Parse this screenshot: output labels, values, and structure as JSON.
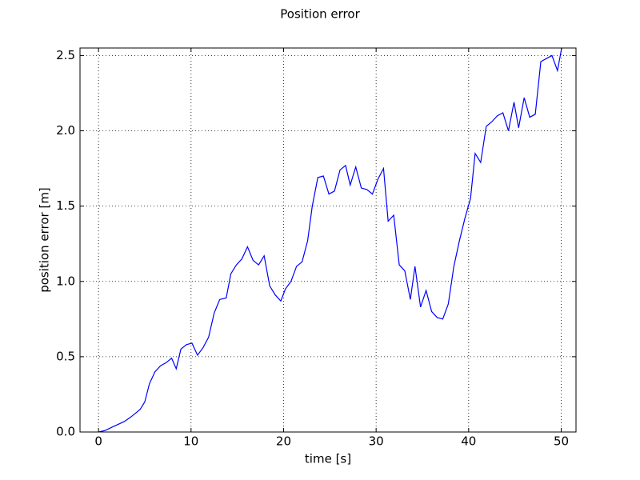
{
  "chart_data": {
    "type": "line",
    "title": "Position error",
    "x_label": "time [s]",
    "y_label": "position error [m]",
    "x": [
      0,
      0.7,
      1.4,
      2.1,
      2.8,
      3.5,
      4.1,
      4.5,
      5.0,
      5.5,
      6.1,
      6.7,
      7.3,
      7.9,
      8.4,
      8.9,
      9.5,
      10.1,
      10.7,
      11.3,
      11.9,
      12.5,
      13.1,
      13.8,
      14.3,
      14.9,
      15.5,
      16.1,
      16.7,
      17.3,
      17.9,
      18.5,
      19.1,
      19.7,
      20.2,
      20.8,
      21.4,
      22.0,
      22.6,
      23.1,
      23.7,
      24.3,
      24.9,
      25.5,
      26.1,
      26.7,
      27.2,
      27.8,
      28.4,
      29.0,
      29.6,
      30.2,
      30.8,
      31.3,
      31.9,
      32.5,
      33.1,
      33.7,
      34.2,
      34.8,
      35.4,
      36.0,
      36.6,
      37.2,
      37.8,
      38.4,
      39.0,
      39.6,
      40.2,
      40.7,
      41.3,
      41.9,
      42.5,
      43.1,
      43.7,
      44.3,
      44.9,
      45.4,
      46.0,
      46.6,
      47.2,
      47.8,
      48.4,
      49.0,
      49.6,
      50.2
    ],
    "series": [
      {
        "name": "position error",
        "color": "#0000ff",
        "values": [
          0.0,
          0.01,
          0.03,
          0.05,
          0.07,
          0.1,
          0.13,
          0.15,
          0.2,
          0.32,
          0.4,
          0.44,
          0.46,
          0.49,
          0.42,
          0.55,
          0.58,
          0.59,
          0.51,
          0.56,
          0.63,
          0.79,
          0.88,
          0.89,
          1.05,
          1.11,
          1.15,
          1.23,
          1.14,
          1.11,
          1.17,
          0.97,
          0.91,
          0.87,
          0.95,
          1.0,
          1.1,
          1.13,
          1.27,
          1.5,
          1.69,
          1.7,
          1.58,
          1.6,
          1.74,
          1.77,
          1.64,
          1.76,
          1.62,
          1.61,
          1.58,
          1.68,
          1.75,
          1.4,
          1.44,
          1.11,
          1.07,
          0.88,
          1.1,
          0.83,
          0.94,
          0.8,
          0.76,
          0.75,
          0.85,
          1.1,
          1.27,
          1.42,
          1.55,
          1.85,
          1.79,
          2.03,
          2.06,
          2.1,
          2.12,
          2.0,
          2.19,
          2.02,
          2.22,
          2.09,
          2.11,
          2.46,
          2.48,
          2.5,
          2.4,
          2.6
        ]
      }
    ],
    "xlim": [
      -2,
      51.6
    ],
    "ylim": [
      0,
      2.55
    ],
    "xticks": [
      0,
      10,
      20,
      30,
      40,
      50
    ],
    "yticks": [
      {
        "value": 0,
        "label": "0.0"
      },
      0.5,
      {
        "value": 1,
        "label": "1.0"
      },
      1.5,
      {
        "value": 2,
        "label": "2.0"
      },
      2.5
    ],
    "grid": true
  }
}
